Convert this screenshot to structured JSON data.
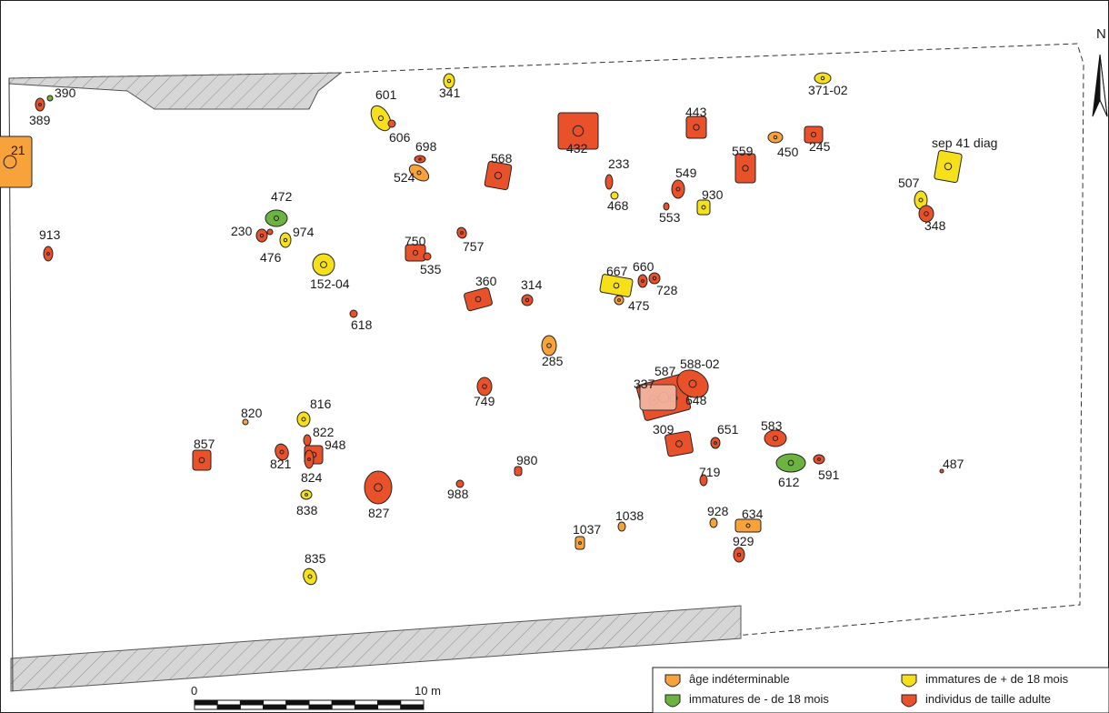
{
  "colors": {
    "indet": "#f7a23b",
    "under18": "#6cb33f",
    "over18": "#f6e01a",
    "adult": "#e9512b",
    "pale": "#f4b8a4",
    "dark": "#222222",
    "hatch": "#cfcfcf"
  },
  "north": {
    "label": "N"
  },
  "scale": {
    "start_label": "0",
    "end_label": "10 m"
  },
  "legend": [
    {
      "key": "indet",
      "label": "âge indéterminable"
    },
    {
      "key": "over18",
      "label": "immatures de + de 18 mois"
    },
    {
      "key": "under18",
      "label": "immatures de - de 18 mois"
    },
    {
      "key": "adult",
      "label": "individus de taille adulte"
    }
  ],
  "features": [
    {
      "id": "390",
      "label": "390",
      "cat": "under18"
    },
    {
      "id": "389",
      "label": "389",
      "cat": "adult"
    },
    {
      "id": "21",
      "label": "21",
      "cat": "indet"
    },
    {
      "id": "913",
      "label": "913",
      "cat": "adult"
    },
    {
      "id": "341",
      "label": "341",
      "cat": "over18"
    },
    {
      "id": "601",
      "label": "601",
      "cat": "over18"
    },
    {
      "id": "606",
      "label": "606",
      "cat": "adult"
    },
    {
      "id": "698",
      "label": "698",
      "cat": "adult"
    },
    {
      "id": "524",
      "label": "524",
      "cat": "indet"
    },
    {
      "id": "472",
      "label": "472",
      "cat": "under18"
    },
    {
      "id": "230",
      "label": "230",
      "cat": "adult"
    },
    {
      "id": "974",
      "label": "974",
      "cat": "over18"
    },
    {
      "id": "476",
      "label": "476",
      "cat": "adult"
    },
    {
      "id": "152-04",
      "label": "152-04",
      "cat": "over18"
    },
    {
      "id": "618",
      "label": "618",
      "cat": "adult"
    },
    {
      "id": "750",
      "label": "750",
      "cat": "adult"
    },
    {
      "id": "535",
      "label": "535",
      "cat": "adult"
    },
    {
      "id": "757",
      "label": "757",
      "cat": "adult"
    },
    {
      "id": "568",
      "label": "568",
      "cat": "adult"
    },
    {
      "id": "432",
      "label": "432",
      "cat": "adult"
    },
    {
      "id": "360",
      "label": "360",
      "cat": "adult"
    },
    {
      "id": "314",
      "label": "314",
      "cat": "adult"
    },
    {
      "id": "233",
      "label": "233",
      "cat": "adult"
    },
    {
      "id": "468",
      "label": "468",
      "cat": "over18"
    },
    {
      "id": "443",
      "label": "443",
      "cat": "adult"
    },
    {
      "id": "549",
      "label": "549",
      "cat": "adult"
    },
    {
      "id": "553",
      "label": "553",
      "cat": "adult"
    },
    {
      "id": "930",
      "label": "930",
      "cat": "over18"
    },
    {
      "id": "559",
      "label": "559",
      "cat": "adult"
    },
    {
      "id": "450",
      "label": "450",
      "cat": "indet"
    },
    {
      "id": "245",
      "label": "245",
      "cat": "adult"
    },
    {
      "id": "371-02",
      "label": "371-02",
      "cat": "over18"
    },
    {
      "id": "sep41",
      "label": "sep 41 diag",
      "cat": "over18"
    },
    {
      "id": "507",
      "label": "507",
      "cat": "over18"
    },
    {
      "id": "348",
      "label": "348",
      "cat": "adult"
    },
    {
      "id": "667",
      "label": "667",
      "cat": "over18"
    },
    {
      "id": "660",
      "label": "660",
      "cat": "adult"
    },
    {
      "id": "728",
      "label": "728",
      "cat": "adult"
    },
    {
      "id": "475",
      "label": "475",
      "cat": "indet"
    },
    {
      "id": "285",
      "label": "285",
      "cat": "indet"
    },
    {
      "id": "749",
      "label": "749",
      "cat": "adult"
    },
    {
      "id": "587",
      "label": "587",
      "cat": "adult"
    },
    {
      "id": "588-02",
      "label": "588-02",
      "cat": "adult"
    },
    {
      "id": "337",
      "label": "337",
      "cat": "adult"
    },
    {
      "id": "648",
      "label": "648",
      "cat": "adult"
    },
    {
      "id": "820",
      "label": "820",
      "cat": "indet"
    },
    {
      "id": "816",
      "label": "816",
      "cat": "over18"
    },
    {
      "id": "822",
      "label": "822",
      "cat": "adult"
    },
    {
      "id": "948",
      "label": "948",
      "cat": "adult"
    },
    {
      "id": "857",
      "label": "857",
      "cat": "adult"
    },
    {
      "id": "821",
      "label": "821",
      "cat": "adult"
    },
    {
      "id": "824",
      "label": "824",
      "cat": "adult"
    },
    {
      "id": "838",
      "label": "838",
      "cat": "over18"
    },
    {
      "id": "827",
      "label": "827",
      "cat": "adult"
    },
    {
      "id": "988",
      "label": "988",
      "cat": "adult"
    },
    {
      "id": "980",
      "label": "980",
      "cat": "adult"
    },
    {
      "id": "309",
      "label": "309",
      "cat": "adult"
    },
    {
      "id": "651",
      "label": "651",
      "cat": "adult"
    },
    {
      "id": "583",
      "label": "583",
      "cat": "adult"
    },
    {
      "id": "612",
      "label": "612",
      "cat": "under18"
    },
    {
      "id": "591",
      "label": "591",
      "cat": "adult"
    },
    {
      "id": "487",
      "label": "487",
      "cat": "adult"
    },
    {
      "id": "719",
      "label": "719",
      "cat": "adult"
    },
    {
      "id": "928",
      "label": "928",
      "cat": "indet"
    },
    {
      "id": "634",
      "label": "634",
      "cat": "indet"
    },
    {
      "id": "929",
      "label": "929",
      "cat": "adult"
    },
    {
      "id": "1038",
      "label": "1038",
      "cat": "indet"
    },
    {
      "id": "1037",
      "label": "1037",
      "cat": "indet"
    },
    {
      "id": "835",
      "label": "835",
      "cat": "over18"
    }
  ]
}
